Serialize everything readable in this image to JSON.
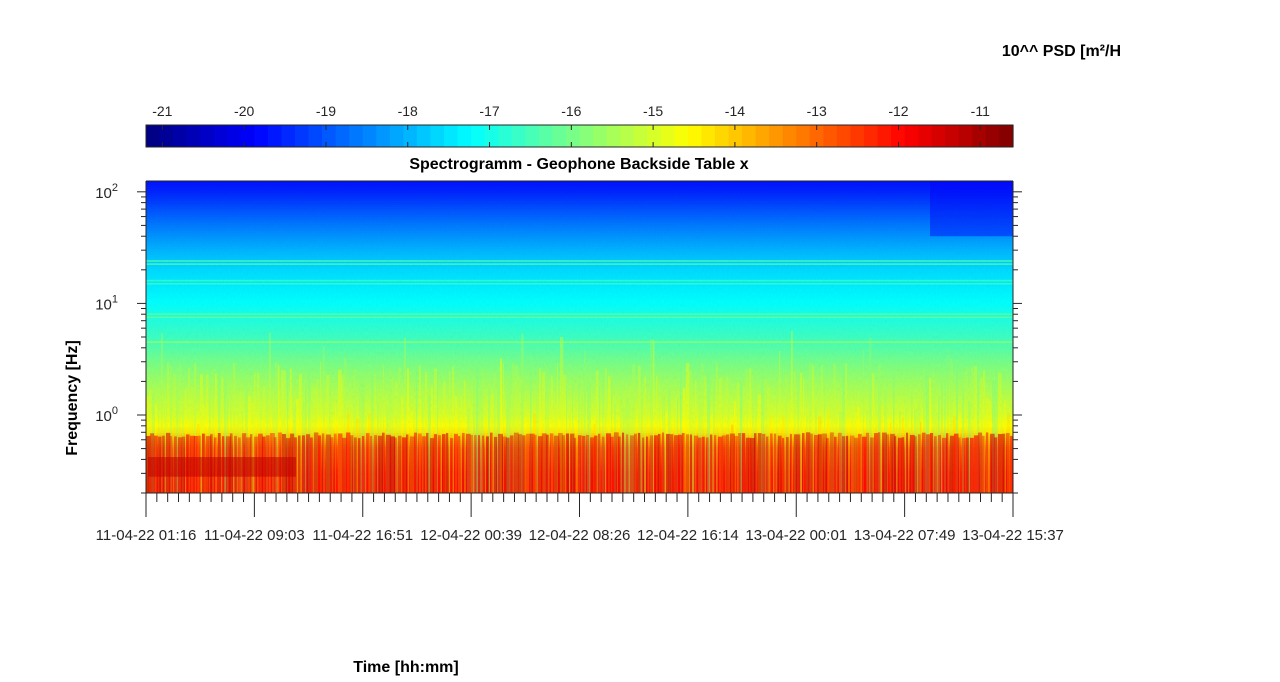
{
  "chart_data": {
    "type": "heatmap",
    "title": "Spectrogramm - Geophone Backside Table x",
    "xlabel": "Time [hh:mm]",
    "ylabel": "Frequency [Hz]",
    "colorbar_label": "10^^ PSD [m²/H",
    "colormap": "jet",
    "y_scale": "log",
    "ylim": [
      0.2,
      125
    ],
    "y_ticks": [
      {
        "value": 1,
        "base": "10",
        "exp": "0"
      },
      {
        "value": 10,
        "base": "10",
        "exp": "1"
      },
      {
        "value": 100,
        "base": "10",
        "exp": "2"
      }
    ],
    "x_tick_labels": [
      "11-04-22 01:16",
      "11-04-22 09:03",
      "11-04-22 16:51",
      "12-04-22 00:39",
      "12-04-22 08:26",
      "12-04-22 16:14",
      "13-04-22 00:01",
      "13-04-22 07:49",
      "13-04-22 15:37"
    ],
    "clim": [
      -21.2,
      -10.6
    ],
    "colorbar_ticks": [
      -21,
      -20,
      -19,
      -18,
      -17,
      -16,
      -15,
      -14,
      -13,
      -12,
      -11
    ],
    "grid": false,
    "colorbar_location": "top",
    "psd_profile": {
      "frequency_hz": [
        0.2,
        0.3,
        0.5,
        0.7,
        1,
        2,
        3,
        5,
        10,
        20,
        30,
        50,
        100,
        125
      ],
      "log10_psd": [
        -12.2,
        -12.3,
        -12.9,
        -14.3,
        -15.0,
        -15.6,
        -16.0,
        -16.6,
        -17.2,
        -17.6,
        -18.0,
        -18.6,
        -19.5,
        -19.7
      ]
    }
  }
}
